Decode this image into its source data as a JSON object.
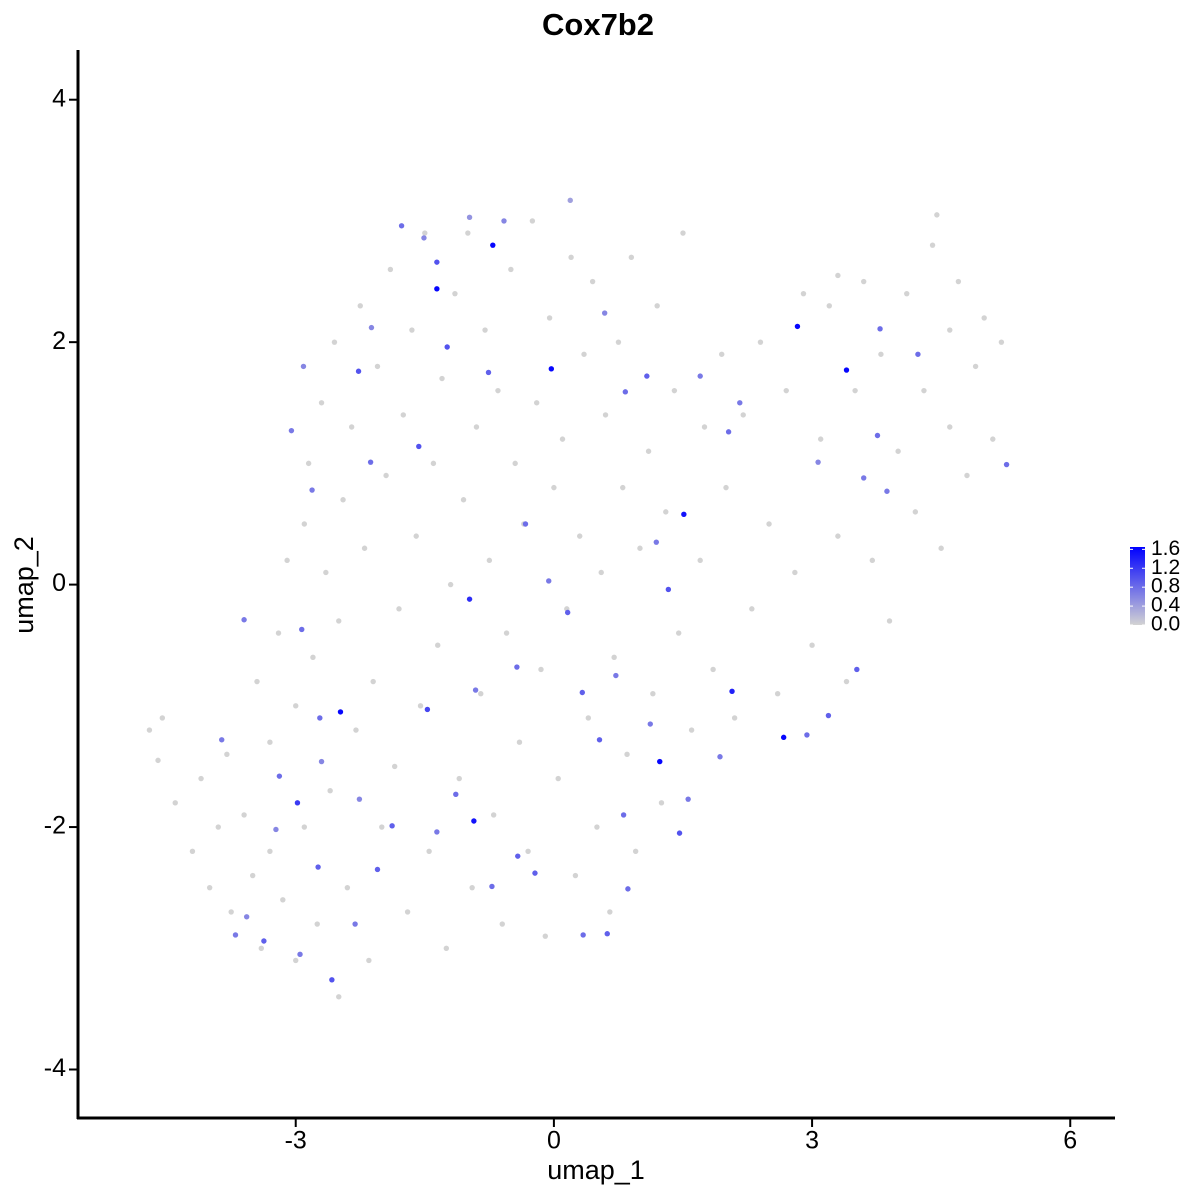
{
  "chart_data": {
    "type": "scatter",
    "title": "Cox7b2",
    "xlabel": "umap_1",
    "ylabel": "umap_2",
    "xlim": [
      -5.53,
      6.52
    ],
    "ylim": [
      -4.4,
      4.41
    ],
    "xticks": [
      -3,
      0,
      3,
      6
    ],
    "yticks": [
      -4,
      -2,
      0,
      2,
      4
    ],
    "color_low": "#d3d3d3",
    "color_high": "#0000ff",
    "colorbar": {
      "lim": [
        0,
        1.65
      ],
      "ticks": [
        {
          "value": 0,
          "label": "0.0"
        },
        0.4,
        0.8,
        1.2,
        1.6
      ]
    },
    "x": [
      -4.7,
      -4.6,
      -4.55,
      -4.4,
      -4.2,
      -4.1,
      -4.0,
      -3.9,
      -3.8,
      -3.75,
      -3.6,
      -3.5,
      -3.45,
      -3.4,
      -3.3,
      -3.3,
      -3.2,
      -3.15,
      -3.1,
      -3.0,
      -3.0,
      -2.9,
      -2.9,
      -2.85,
      -2.8,
      -2.75,
      -2.7,
      -2.65,
      -2.6,
      -2.55,
      -2.5,
      -2.5,
      -2.45,
      -2.4,
      -2.35,
      -2.3,
      -2.25,
      -2.2,
      -2.15,
      -2.1,
      -2.05,
      -2.0,
      -1.95,
      -1.9,
      -1.85,
      -1.8,
      -1.75,
      -1.7,
      -1.65,
      -1.6,
      -1.55,
      -1.5,
      -1.45,
      -1.4,
      -1.35,
      -1.3,
      -1.25,
      -1.2,
      -1.15,
      -1.1,
      -1.05,
      -1.0,
      -0.95,
      -0.9,
      -0.85,
      -0.8,
      -0.75,
      -0.7,
      -0.65,
      -0.6,
      -0.55,
      -0.5,
      -0.45,
      -0.4,
      -0.35,
      -0.3,
      -0.25,
      -0.2,
      -0.15,
      -0.1,
      -0.05,
      0.0,
      0.05,
      0.1,
      0.15,
      0.2,
      0.25,
      0.3,
      0.35,
      0.4,
      0.45,
      0.5,
      0.55,
      0.6,
      0.65,
      0.7,
      0.75,
      0.8,
      0.85,
      0.9,
      0.95,
      1.0,
      1.1,
      1.15,
      1.2,
      1.25,
      1.3,
      1.4,
      1.45,
      1.5,
      1.6,
      1.7,
      1.75,
      1.85,
      1.95,
      2.0,
      2.1,
      2.2,
      2.3,
      2.4,
      2.5,
      2.6,
      2.7,
      2.8,
      2.9,
      3.0,
      3.1,
      3.2,
      3.3,
      3.4,
      3.5,
      3.6,
      3.7,
      3.8,
      3.9,
      4.0,
      4.1,
      4.2,
      4.3,
      4.4,
      4.5,
      4.6,
      4.7,
      4.8,
      4.9,
      5.0,
      5.1,
      5.2,
      4.45,
      4.6,
      3.3,
      -0.71,
      -1.36,
      -1.36,
      -1.77,
      -0.03,
      2.83,
      3.4,
      1.51,
      -2.48,
      1.23,
      2.67,
      2.07,
      -0.93,
      -0.98,
      -2.98,
      -2.58,
      -2.27,
      -1.57,
      -1.24,
      -0.76,
      1.08,
      0.83,
      2.03,
      3.79,
      4.23,
      5.26,
      -3.05,
      -2.81,
      -2.13,
      -0.33,
      -0.06,
      0.16,
      1.33,
      -0.43,
      0.33,
      -1.47,
      0.53,
      1.46,
      0.62,
      0.34,
      -0.42,
      -0.22,
      -1.88,
      -2.05,
      -2.74,
      -3.37,
      -3.86,
      -3.6,
      -2.93,
      -2.72,
      -3.19,
      3.52,
      3.19,
      2.94,
      3.76,
      3.6,
      3.87,
      3.07,
      2.16,
      1.7,
      1.19,
      0.59,
      -0.58,
      0.19,
      -1.51,
      -2.12,
      -2.91,
      -0.98,
      0.86,
      0.81,
      -1.14,
      -1.36,
      -0.72,
      1.93,
      1.56,
      1.12,
      0.72,
      -0.91,
      -2.31,
      -2.95,
      -3.7,
      -3.57,
      -3.23,
      -2.7,
      -2.26
    ],
    "y": [
      -1.2,
      -1.45,
      -1.1,
      -1.8,
      -2.2,
      -1.6,
      -2.5,
      -2.0,
      -1.4,
      -2.7,
      -1.9,
      -2.4,
      -0.8,
      -3.0,
      -1.3,
      -2.2,
      -0.4,
      -2.6,
      0.2,
      -1.0,
      -3.1,
      0.5,
      -2.0,
      1.0,
      -0.6,
      -2.8,
      1.5,
      0.1,
      -1.7,
      2.0,
      -0.3,
      -3.4,
      0.7,
      -2.5,
      1.3,
      -1.2,
      2.3,
      0.3,
      -3.1,
      -0.8,
      1.8,
      -2.0,
      0.9,
      2.6,
      -1.5,
      -0.2,
      1.4,
      -2.7,
      2.1,
      0.4,
      -1.0,
      2.9,
      -2.2,
      1.0,
      -0.5,
      1.7,
      -3.0,
      0.0,
      2.4,
      -1.6,
      0.7,
      2.9,
      -2.5,
      1.3,
      -0.9,
      2.1,
      0.2,
      -1.9,
      1.6,
      -2.8,
      -0.4,
      2.6,
      1.0,
      -1.3,
      0.5,
      -2.2,
      3.0,
      1.5,
      -0.7,
      -2.9,
      2.2,
      0.8,
      -1.6,
      1.2,
      -0.2,
      2.7,
      -2.4,
      0.4,
      1.9,
      -1.1,
      2.5,
      -2.0,
      0.1,
      1.4,
      -2.7,
      -0.6,
      2.0,
      0.8,
      -1.4,
      2.7,
      -2.2,
      0.3,
      1.1,
      -0.9,
      2.3,
      -1.8,
      0.6,
      1.6,
      -0.4,
      2.9,
      -1.2,
      0.2,
      1.3,
      -0.7,
      1.9,
      0.8,
      -1.1,
      1.4,
      -0.2,
      2.0,
      0.5,
      -0.9,
      1.6,
      0.1,
      2.4,
      -0.5,
      1.2,
      2.3,
      0.4,
      -0.8,
      1.6,
      2.5,
      0.2,
      1.9,
      -0.3,
      1.1,
      2.4,
      0.6,
      1.6,
      2.8,
      0.3,
      1.3,
      2.5,
      0.9,
      1.8,
      2.2,
      1.2,
      2.0,
      3.05,
      2.1,
      2.55,
      2.8,
      2.44,
      2.66,
      2.96,
      1.78,
      2.13,
      1.77,
      0.58,
      -1.05,
      -1.46,
      -1.26,
      -0.88,
      -1.95,
      -0.12,
      -1.8,
      -3.26,
      1.76,
      1.14,
      1.96,
      1.75,
      1.72,
      1.59,
      1.26,
      2.11,
      1.9,
      0.99,
      1.27,
      0.78,
      1.01,
      0.5,
      0.03,
      -0.23,
      -0.04,
      -0.68,
      -0.89,
      -1.03,
      -1.28,
      -2.05,
      -2.88,
      -2.89,
      -2.24,
      -2.38,
      -1.99,
      -2.35,
      -2.33,
      -2.94,
      -1.28,
      -0.29,
      -0.37,
      -1.1,
      -1.58,
      -0.7,
      -1.08,
      -1.24,
      1.23,
      0.88,
      0.77,
      1.01,
      1.5,
      1.72,
      0.35,
      2.24,
      3.0,
      3.17,
      2.86,
      2.12,
      1.8,
      3.03,
      -2.51,
      -1.9,
      -1.73,
      -2.04,
      -2.49,
      -1.42,
      -1.77,
      -1.15,
      -0.75,
      -0.87,
      -2.8,
      -3.05,
      -2.89,
      -2.74,
      -2.02,
      -1.46,
      -1.77
    ],
    "values": [
      0,
      0,
      0,
      0,
      0,
      0,
      0,
      0,
      0,
      0,
      0,
      0,
      0,
      0,
      0,
      0,
      0,
      0,
      0,
      0,
      0,
      0,
      0,
      0,
      0,
      0,
      0,
      0,
      0,
      0,
      0,
      0,
      0,
      0,
      0,
      0,
      0,
      0,
      0,
      0,
      0,
      0,
      0,
      0,
      0,
      0,
      0,
      0,
      0,
      0,
      0,
      0,
      0,
      0,
      0,
      0,
      0,
      0,
      0,
      0,
      0,
      0,
      0,
      0,
      0,
      0,
      0,
      0,
      0,
      0,
      0,
      0,
      0,
      0,
      0,
      0,
      0,
      0,
      0,
      0,
      0,
      0,
      0,
      0,
      0,
      0,
      0,
      0,
      0,
      0,
      0,
      0,
      0,
      0,
      0,
      0,
      0,
      0,
      0,
      0,
      0,
      0,
      0,
      0,
      0,
      0,
      0,
      0,
      0,
      0,
      0,
      0,
      0,
      0,
      0,
      0,
      0,
      0,
      0,
      0,
      0,
      0,
      0,
      0,
      0,
      0,
      0,
      0,
      0,
      0,
      0,
      0,
      0,
      0,
      0,
      0,
      0,
      0,
      0,
      0,
      0,
      0,
      0,
      0,
      0,
      0,
      0,
      0,
      0,
      0,
      0,
      1.6,
      1.6,
      1.0,
      0.8,
      1.6,
      1.6,
      1.6,
      1.5,
      1.6,
      1.6,
      1.6,
      1.4,
      1.5,
      1.3,
      1.2,
      1.0,
      1.0,
      1.0,
      1.0,
      0.9,
      0.9,
      0.8,
      0.8,
      0.8,
      0.8,
      0.8,
      0.7,
      0.7,
      0.8,
      0.8,
      0.7,
      0.9,
      1.0,
      0.8,
      0.9,
      1.1,
      0.9,
      1.0,
      0.9,
      0.8,
      0.9,
      0.9,
      0.9,
      0.9,
      0.9,
      0.9,
      0.7,
      0.7,
      0.8,
      0.8,
      0.8,
      0.9,
      0.9,
      0.8,
      0.8,
      0.7,
      0.7,
      0.6,
      0.7,
      0.7,
      0.7,
      0.6,
      0.6,
      0.4,
      0.6,
      0.6,
      0.6,
      0.5,
      0.8,
      0.8,
      0.8,
      0.7,
      0.8,
      0.7,
      0.7,
      0.7,
      0.7,
      0.7,
      0.7,
      0.7,
      0.7,
      0.6,
      0.6,
      0.6,
      0.6
    ]
  }
}
